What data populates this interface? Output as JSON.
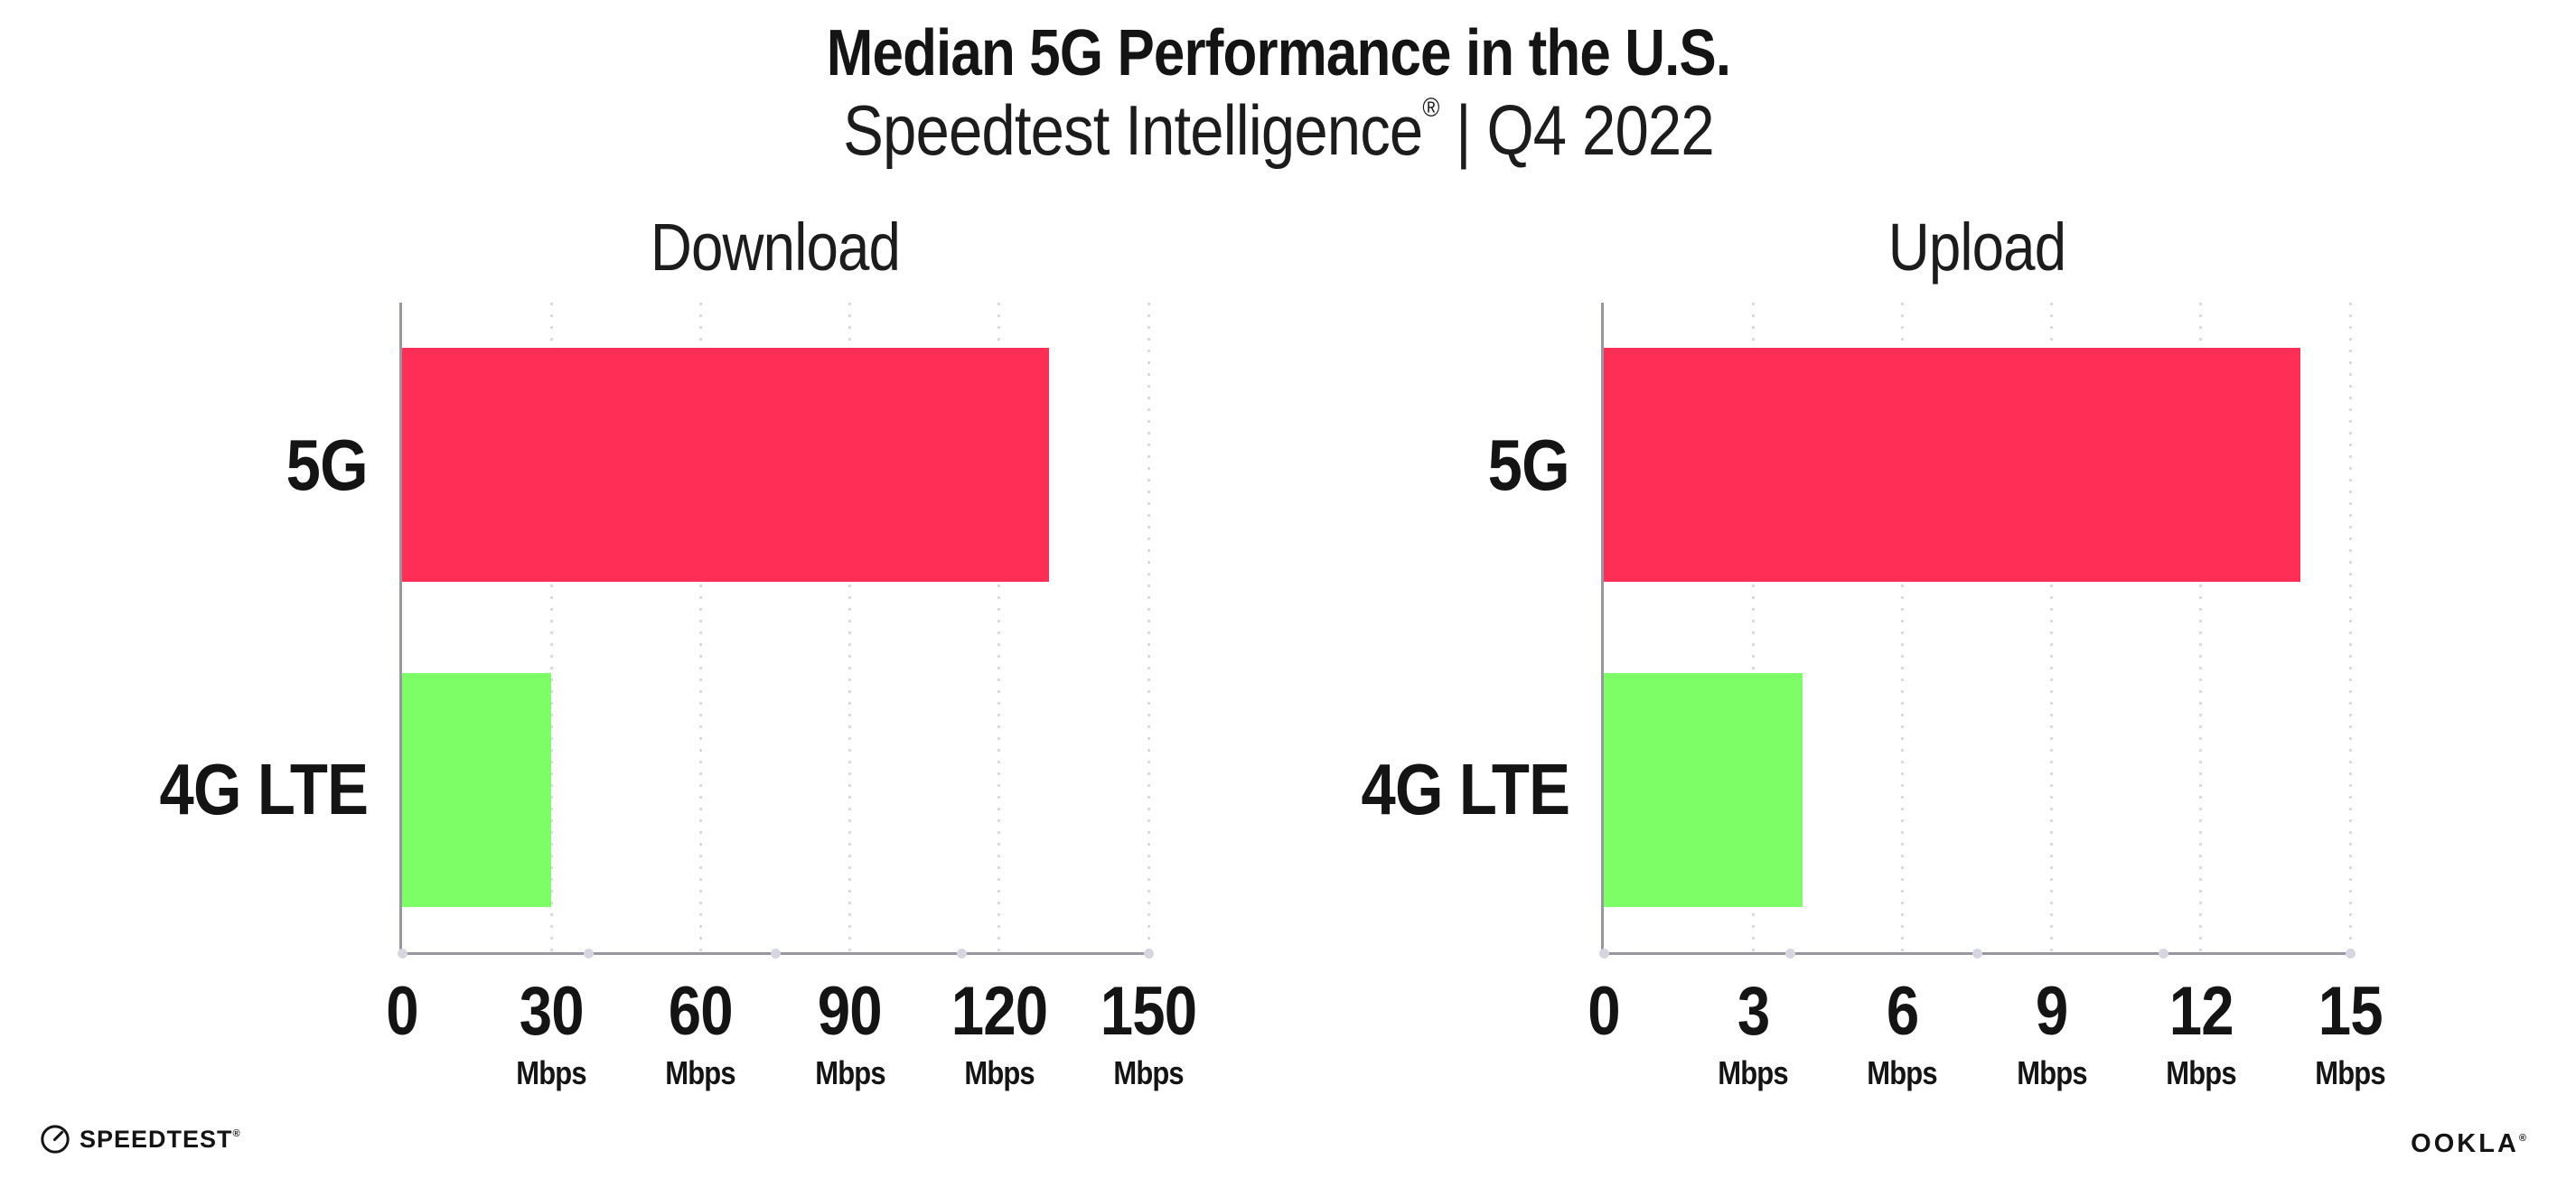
{
  "header": {
    "title": "Median 5G Performance in the U.S.",
    "subtitle_brand": "Speedtest Intelligence",
    "subtitle_reg": "®",
    "subtitle_rest": " | Q4 2022"
  },
  "footer": {
    "speedtest_label": "SPEEDTEST",
    "speedtest_reg": "®",
    "ookla_label": "OOKLA",
    "ookla_reg": "®"
  },
  "colors": {
    "bar_5g": "#FF2E56",
    "bar_4g_lte": "#7DFD66",
    "axis": "#97979F",
    "gridline_dot": "#D9D9E3",
    "axis_dot": "#D6D6E0",
    "text": "#141414"
  },
  "chart_data": [
    {
      "type": "bar",
      "orientation": "horizontal",
      "title": "Download",
      "categories": [
        "5G",
        "4G LTE"
      ],
      "values": [
        130,
        30
      ],
      "unit": "Mbps",
      "colors": [
        "#FF2E56",
        "#7DFD66"
      ],
      "xlim": [
        0,
        150
      ],
      "ticks": [
        {
          "value": 0,
          "label": "0",
          "unit": ""
        },
        {
          "value": 30,
          "label": "30",
          "unit": "Mbps"
        },
        {
          "value": 60,
          "label": "60",
          "unit": "Mbps"
        },
        {
          "value": 90,
          "label": "90",
          "unit": "Mbps"
        },
        {
          "value": 120,
          "label": "120",
          "unit": "Mbps"
        },
        {
          "value": 150,
          "label": "150",
          "unit": "Mbps"
        }
      ],
      "grid": "dotted-vertical-major",
      "legend": "none"
    },
    {
      "type": "bar",
      "orientation": "horizontal",
      "title": "Upload",
      "categories": [
        "5G",
        "4G LTE"
      ],
      "values": [
        14,
        4
      ],
      "unit": "Mbps",
      "colors": [
        "#FF2E56",
        "#7DFD66"
      ],
      "xlim": [
        0,
        15
      ],
      "ticks": [
        {
          "value": 0,
          "label": "0",
          "unit": ""
        },
        {
          "value": 3,
          "label": "3",
          "unit": "Mbps"
        },
        {
          "value": 6,
          "label": "6",
          "unit": "Mbps"
        },
        {
          "value": 9,
          "label": "9",
          "unit": "Mbps"
        },
        {
          "value": 12,
          "label": "12",
          "unit": "Mbps"
        },
        {
          "value": 15,
          "label": "15",
          "unit": "Mbps"
        }
      ],
      "grid": "dotted-vertical-major",
      "legend": "none"
    }
  ]
}
